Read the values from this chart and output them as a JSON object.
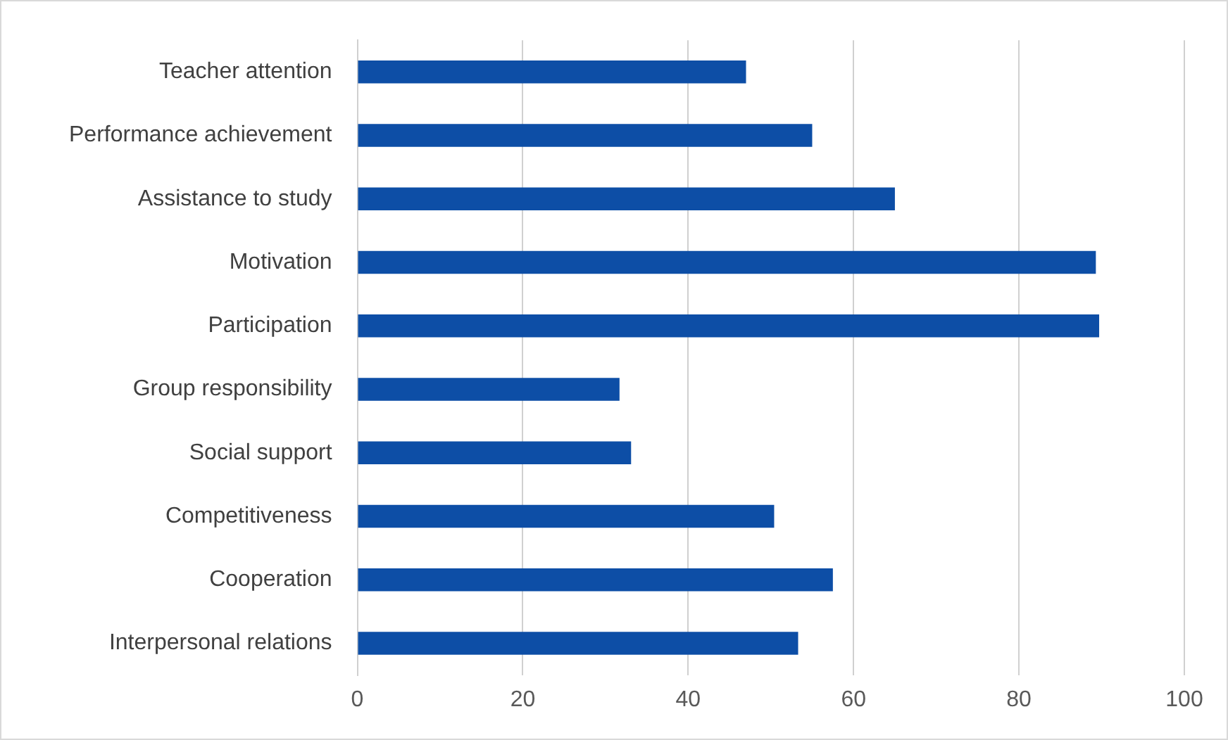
{
  "chart_data": {
    "type": "bar",
    "orientation": "horizontal",
    "categories": [
      "Teacher attention",
      "Performance achievement",
      "Assistance to study",
      "Motivation",
      "Participation",
      "Group responsibility",
      "Social support",
      "Competitiveness",
      "Cooperation",
      "Interpersonal relations"
    ],
    "values": [
      47,
      55,
      65,
      89.3,
      89.7,
      31.7,
      33.1,
      50.4,
      57.5,
      53.3
    ],
    "color": "#0d4ea6",
    "xlim": [
      0,
      100
    ],
    "xticks": [
      0,
      20,
      40,
      60,
      80,
      100
    ],
    "grid": "x",
    "legend": false
  }
}
